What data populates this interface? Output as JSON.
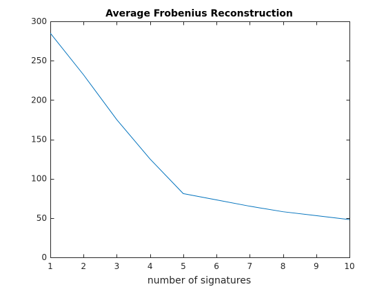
{
  "chart_data": {
    "type": "line",
    "title": "Average Frobenius Reconstruction",
    "xlabel": "number of signatures",
    "ylabel": "",
    "xlim": [
      1,
      10
    ],
    "ylim": [
      0,
      300
    ],
    "xticks": [
      1,
      2,
      3,
      4,
      5,
      6,
      7,
      8,
      9,
      10
    ],
    "yticks": [
      0,
      50,
      100,
      150,
      200,
      250,
      300
    ],
    "grid": false,
    "legend": "none",
    "series": [
      {
        "x": [
          1,
          2,
          3,
          4,
          5,
          6,
          7,
          8,
          9,
          10
        ],
        "values": [
          285,
          232,
          175,
          125,
          81,
          73,
          65,
          58,
          53,
          48
        ]
      }
    ]
  },
  "colors": {
    "line": "#0072bd",
    "axes": "#262626",
    "background": "#ffffff"
  }
}
